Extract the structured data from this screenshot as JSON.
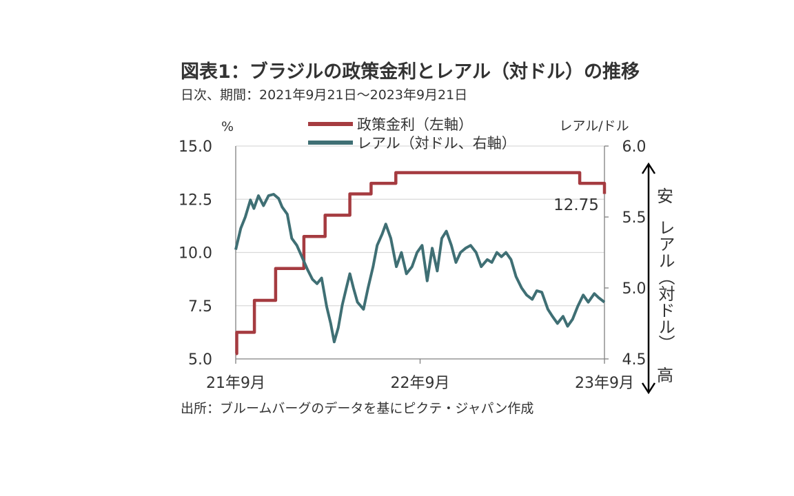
{
  "title": "図表1：ブラジルの政策金利とレアル（対ドル）の推移",
  "subtitle": "日次、期間：2021年9月21日～2023年9月21日",
  "source": "出所：ブルームバーグのデータを基にピクテ・ジャパン作成",
  "colors": {
    "policy_rate": "#a53b40",
    "brl": "#3f6f74",
    "grid": "#d9d9d9",
    "axis": "#808080"
  },
  "chart_data": {
    "type": "line",
    "left_unit": "%",
    "right_unit": "レアル/ドル",
    "left_ticks": [
      "15.0",
      "12.5",
      "10.0",
      "7.5",
      "5.0"
    ],
    "right_ticks": [
      "6.0",
      "5.5",
      "5.0",
      "4.5"
    ],
    "left_ylim": [
      5.0,
      15.0
    ],
    "right_ylim": [
      4.5,
      6.0
    ],
    "x_tick_labels": [
      "21年9月",
      "22年9月",
      "23年9月"
    ],
    "xlim": [
      "2021-09-21",
      "2023-09-21"
    ],
    "legend": [
      "政策金利（左軸）",
      "レアル（対ドル、右軸）"
    ],
    "annotation": "12.75",
    "right_arrow": {
      "top": "安",
      "middle": "レアル（対ドル）",
      "bottom": "高"
    },
    "grid": "horizontal",
    "series": [
      {
        "name": "政策金利（左軸）",
        "axis": "left",
        "step": true,
        "x": [
          "2021-09-21",
          "2021-09-23",
          "2021-10-28",
          "2021-12-09",
          "2022-02-03",
          "2022-03-17",
          "2022-05-05",
          "2022-06-16",
          "2022-08-04",
          "2023-08-03",
          "2023-09-21"
        ],
        "y": [
          5.25,
          6.25,
          7.75,
          9.25,
          10.75,
          11.75,
          12.75,
          13.25,
          13.75,
          13.25,
          12.75
        ]
      },
      {
        "name": "レアル（対ドル、右軸）",
        "axis": "right",
        "step": false,
        "x": [
          "2021-09-21",
          "2021-10-01",
          "2021-10-10",
          "2021-10-20",
          "2021-10-27",
          "2021-11-05",
          "2021-11-15",
          "2021-11-25",
          "2021-12-05",
          "2021-12-15",
          "2021-12-22",
          "2022-01-01",
          "2022-01-10",
          "2022-01-20",
          "2022-01-30",
          "2022-02-10",
          "2022-02-20",
          "2022-03-01",
          "2022-03-10",
          "2022-03-20",
          "2022-03-28",
          "2022-04-04",
          "2022-04-12",
          "2022-04-20",
          "2022-04-28",
          "2022-05-05",
          "2022-05-12",
          "2022-05-20",
          "2022-06-01",
          "2022-06-10",
          "2022-06-20",
          "2022-06-28",
          "2022-07-08",
          "2022-07-15",
          "2022-07-25",
          "2022-08-05",
          "2022-08-15",
          "2022-08-25",
          "2022-09-05",
          "2022-09-15",
          "2022-09-25",
          "2022-10-05",
          "2022-10-15",
          "2022-10-25",
          "2022-11-03",
          "2022-11-12",
          "2022-11-22",
          "2022-12-01",
          "2022-12-10",
          "2022-12-20",
          "2022-12-30",
          "2023-01-10",
          "2023-01-20",
          "2023-02-01",
          "2023-02-10",
          "2023-02-20",
          "2023-03-01",
          "2023-03-10",
          "2023-03-20",
          "2023-03-30",
          "2023-04-10",
          "2023-04-20",
          "2023-05-01",
          "2023-05-10",
          "2023-05-20",
          "2023-06-01",
          "2023-06-10",
          "2023-06-20",
          "2023-07-01",
          "2023-07-10",
          "2023-07-20",
          "2023-07-30",
          "2023-08-10",
          "2023-08-20",
          "2023-09-01",
          "2023-09-10",
          "2023-09-21"
        ],
        "y": [
          5.27,
          5.42,
          5.5,
          5.62,
          5.56,
          5.65,
          5.58,
          5.65,
          5.66,
          5.63,
          5.57,
          5.52,
          5.35,
          5.3,
          5.22,
          5.13,
          5.06,
          5.03,
          5.07,
          4.87,
          4.75,
          4.62,
          4.72,
          4.88,
          5.0,
          5.1,
          5.0,
          4.9,
          4.85,
          5.0,
          5.15,
          5.3,
          5.38,
          5.45,
          5.35,
          5.15,
          5.25,
          5.1,
          5.15,
          5.25,
          5.3,
          5.05,
          5.28,
          5.12,
          5.35,
          5.4,
          5.3,
          5.18,
          5.25,
          5.28,
          5.3,
          5.25,
          5.15,
          5.2,
          5.18,
          5.25,
          5.22,
          5.25,
          5.2,
          5.08,
          5.0,
          4.95,
          4.92,
          4.98,
          4.97,
          4.85,
          4.8,
          4.75,
          4.8,
          4.73,
          4.78,
          4.87,
          4.95,
          4.9,
          4.96,
          4.93,
          4.9
        ]
      }
    ]
  }
}
